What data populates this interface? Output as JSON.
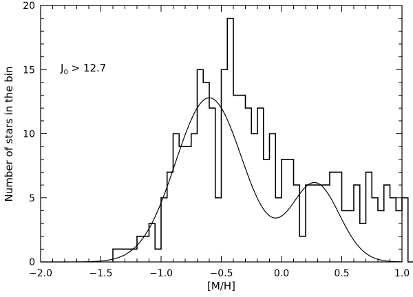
{
  "chart_data": {
    "type": "histogram",
    "title": "",
    "xlabel": "[M/H]",
    "ylabel": "Number of stars in the bin",
    "annotation": {
      "main": "J",
      "sub": "0",
      "rest": " > 12.7"
    },
    "xlim": [
      -2.0,
      1.0
    ],
    "ylim": [
      0,
      20
    ],
    "x_ticks": [
      -2.0,
      -1.5,
      -1.0,
      -0.5,
      0.0,
      0.5,
      1.0
    ],
    "x_tick_labels": [
      "−2.0",
      "−1.5",
      "−1.0",
      "−0.5",
      "0.0",
      "0.5",
      "1.0"
    ],
    "y_ticks": [
      0,
      5,
      10,
      15,
      20
    ],
    "y_tick_labels": [
      "0",
      "5",
      "10",
      "15",
      "20"
    ],
    "grid": false,
    "bin_width": 0.05,
    "bin_start": -1.4,
    "counts": [
      1,
      1,
      1,
      1,
      2,
      2,
      3,
      1,
      5,
      7,
      10,
      9,
      9,
      10,
      15,
      14,
      12,
      5,
      15,
      19,
      13,
      13,
      12,
      10,
      12,
      8,
      10,
      5,
      8,
      8,
      6,
      2,
      6,
      6,
      6,
      6,
      7,
      7,
      4,
      4,
      6,
      3,
      7,
      5,
      4,
      6,
      5,
      4,
      5,
      0
    ],
    "fit_curve": {
      "type": "double_gaussian",
      "components": [
        {
          "amplitude": 12.8,
          "mean": -0.6,
          "sigma": 0.28
        },
        {
          "amplitude": 6.1,
          "mean": 0.28,
          "sigma": 0.2
        }
      ]
    }
  }
}
